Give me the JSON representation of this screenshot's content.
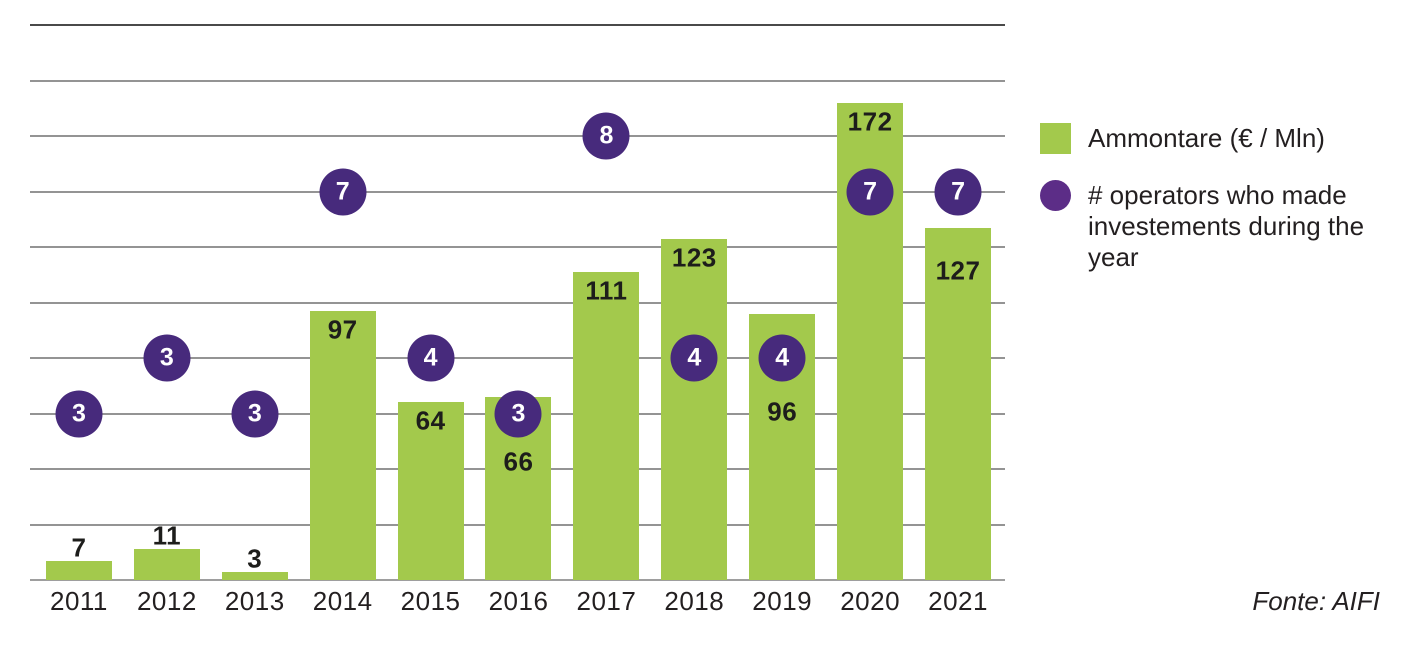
{
  "chart_data": {
    "type": "bar",
    "categories": [
      "2011",
      "2012",
      "2013",
      "2014",
      "2015",
      "2016",
      "2017",
      "2018",
      "2019",
      "2020",
      "2021"
    ],
    "series": [
      {
        "name": "Ammontare (€ / Mln)",
        "type": "bar",
        "color": "#a3c94c",
        "values": [
          7,
          11,
          3,
          97,
          64,
          66,
          111,
          123,
          96,
          172,
          127
        ]
      },
      {
        "name": "# operators who made investements during the year",
        "type": "marker",
        "color": "#472a7c",
        "values": [
          3,
          3,
          3,
          7,
          4,
          3,
          8,
          4,
          4,
          7,
          7
        ]
      }
    ],
    "title": "",
    "xlabel": "",
    "ylabel": "",
    "ylim": [
      0,
      200
    ],
    "grid": true,
    "grid_step": 20,
    "legend_position": "right",
    "marker_display_levels": [
      60,
      80,
      60,
      140,
      80,
      60,
      160,
      80,
      80,
      140,
      140
    ],
    "bar_label_offsets": [
      -13,
      -13,
      -13,
      19,
      19,
      65,
      19,
      19,
      98,
      19,
      43
    ]
  },
  "legend": {
    "items": [
      {
        "label": "Ammontare (€ / Mln)",
        "swatch": "square",
        "color": "#a3c94c"
      },
      {
        "label": "# operators who made investements during the year",
        "swatch": "circle",
        "color": "#5c2d87"
      }
    ]
  },
  "source_note": "Fonte: AIFI"
}
